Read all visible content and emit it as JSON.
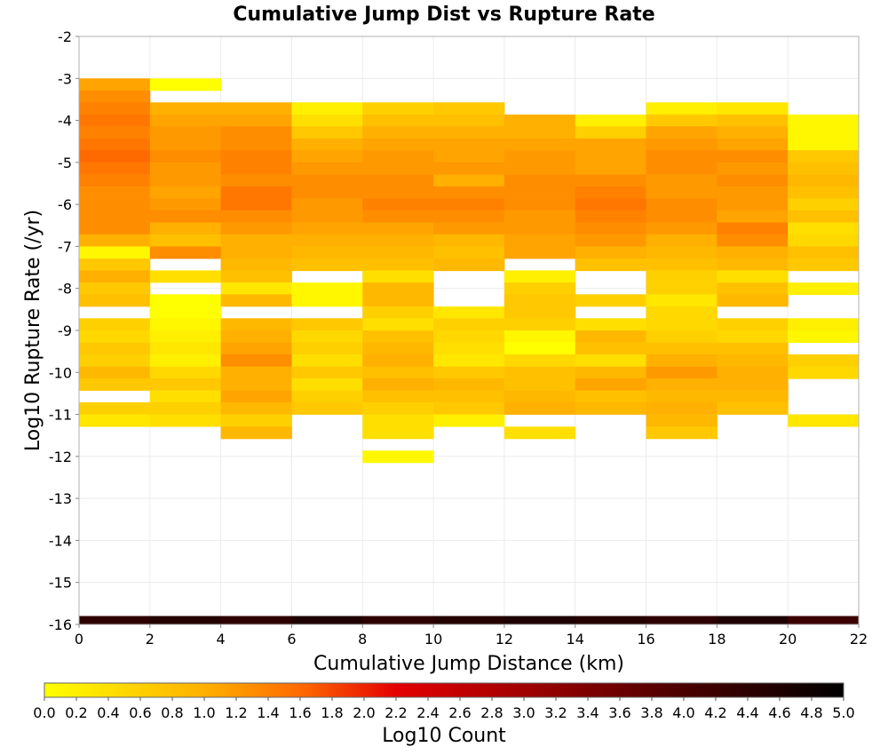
{
  "chart_data": {
    "type": "heatmap",
    "title": "Cumulative Jump Dist vs Rupture Rate",
    "xlabel": "Cumulative Jump Distance (km)",
    "ylabel": "Log10 Rupture Rate (/yr)",
    "xlim": [
      0,
      22
    ],
    "ylim": [
      -16,
      -2
    ],
    "xticks": [
      "0",
      "2",
      "4",
      "6",
      "8",
      "10",
      "12",
      "14",
      "16",
      "18",
      "20",
      "22"
    ],
    "yticks": [
      "-2",
      "-3",
      "-4",
      "-5",
      "-6",
      "-7",
      "-8",
      "-9",
      "-10",
      "-11",
      "-12",
      "-13",
      "-14",
      "-15",
      "-16"
    ],
    "grid": true,
    "x_bin_width_km": 2,
    "y_bin_height_log10": 0.2857,
    "colorscale": {
      "label": "Log10 Count",
      "min": 0.0,
      "max": 5.0,
      "ticks": [
        "0.0",
        "0.2",
        "0.4",
        "0.6",
        "0.8",
        "1.0",
        "1.2",
        "1.4",
        "1.6",
        "1.8",
        "2.0",
        "2.2",
        "2.4",
        "2.6",
        "2.8",
        "3.0",
        "3.2",
        "3.4",
        "3.6",
        "3.8",
        "4.0",
        "4.2",
        "4.4",
        "4.6",
        "4.8",
        "5.0"
      ],
      "stops": [
        {
          "value": 0.0,
          "color": "#ffff00"
        },
        {
          "value": 1.0,
          "color": "#ffb000"
        },
        {
          "value": 1.6,
          "color": "#ff6a00"
        },
        {
          "value": 2.2,
          "color": "#e40000"
        },
        {
          "value": 3.0,
          "color": "#a00000"
        },
        {
          "value": 4.0,
          "color": "#4a0000"
        },
        {
          "value": 5.0,
          "color": "#000000"
        }
      ]
    },
    "columns": [
      {
        "x": 0,
        "cells": [
          [
            -3.0,
            1.1
          ],
          [
            -3.29,
            1.3
          ],
          [
            -3.57,
            1.4
          ],
          [
            -3.86,
            1.5
          ],
          [
            -4.14,
            1.4
          ],
          [
            -4.43,
            1.5
          ],
          [
            -4.71,
            1.6
          ],
          [
            -5.0,
            1.5
          ],
          [
            -5.29,
            1.4
          ],
          [
            -5.57,
            1.3
          ],
          [
            -5.86,
            1.3
          ],
          [
            -6.14,
            1.3
          ],
          [
            -6.43,
            1.3
          ],
          [
            -6.71,
            1.0
          ],
          [
            -7.0,
            0.1
          ],
          [
            -7.29,
            0.7
          ],
          [
            -7.57,
            1.0
          ],
          [
            -7.86,
            0.7
          ],
          [
            -8.14,
            0.8
          ],
          [
            -8.71,
            0.6
          ],
          [
            -9.0,
            0.5
          ],
          [
            -9.29,
            0.7
          ],
          [
            -9.57,
            0.6
          ],
          [
            -9.86,
            0.9
          ],
          [
            -10.14,
            0.7
          ],
          [
            -10.71,
            0.6
          ],
          [
            -11.0,
            0.3
          ]
        ]
      },
      {
        "x": 2,
        "cells": [
          [
            -3.0,
            0.0
          ],
          [
            -3.57,
            1.0
          ],
          [
            -3.86,
            1.1
          ],
          [
            -4.14,
            1.2
          ],
          [
            -4.43,
            1.2
          ],
          [
            -4.71,
            1.3
          ],
          [
            -5.0,
            1.2
          ],
          [
            -5.29,
            1.2
          ],
          [
            -5.57,
            1.1
          ],
          [
            -5.86,
            1.2
          ],
          [
            -6.14,
            1.3
          ],
          [
            -6.43,
            1.0
          ],
          [
            -6.71,
            0.8
          ],
          [
            -7.0,
            1.3
          ],
          [
            -7.57,
            0.4
          ],
          [
            -8.14,
            0.0
          ],
          [
            -8.43,
            0.0
          ],
          [
            -8.71,
            0.1
          ],
          [
            -9.0,
            0.2
          ],
          [
            -9.29,
            0.3
          ],
          [
            -9.57,
            0.2
          ],
          [
            -9.86,
            0.5
          ],
          [
            -10.14,
            0.7
          ],
          [
            -10.43,
            0.4
          ],
          [
            -10.71,
            0.6
          ],
          [
            -11.0,
            0.4
          ]
        ]
      },
      {
        "x": 4,
        "cells": [
          [
            -3.57,
            1.0
          ],
          [
            -3.86,
            1.1
          ],
          [
            -4.14,
            1.3
          ],
          [
            -4.43,
            1.3
          ],
          [
            -4.71,
            1.4
          ],
          [
            -5.0,
            1.4
          ],
          [
            -5.29,
            1.3
          ],
          [
            -5.57,
            1.5
          ],
          [
            -5.86,
            1.5
          ],
          [
            -6.14,
            1.3
          ],
          [
            -6.43,
            1.2
          ],
          [
            -6.71,
            1.0
          ],
          [
            -7.0,
            1.0
          ],
          [
            -7.29,
            0.9
          ],
          [
            -7.57,
            0.8
          ],
          [
            -7.86,
            0.3
          ],
          [
            -8.14,
            0.9
          ],
          [
            -8.71,
            0.9
          ],
          [
            -9.0,
            1.0
          ],
          [
            -9.29,
            1.1
          ],
          [
            -9.57,
            1.3
          ],
          [
            -9.86,
            1.0
          ],
          [
            -10.14,
            1.0
          ],
          [
            -10.43,
            1.1
          ],
          [
            -10.71,
            0.9
          ],
          [
            -11.0,
            0.6
          ],
          [
            -11.29,
            0.9
          ]
        ]
      },
      {
        "x": 6,
        "cells": [
          [
            -3.57,
            0.2
          ],
          [
            -3.86,
            0.4
          ],
          [
            -4.14,
            0.7
          ],
          [
            -4.43,
            1.0
          ],
          [
            -4.71,
            1.1
          ],
          [
            -5.0,
            1.2
          ],
          [
            -5.29,
            1.3
          ],
          [
            -5.57,
            1.3
          ],
          [
            -5.86,
            1.2
          ],
          [
            -6.14,
            1.2
          ],
          [
            -6.43,
            1.1
          ],
          [
            -6.71,
            1.0
          ],
          [
            -7.0,
            0.9
          ],
          [
            -7.29,
            0.8
          ],
          [
            -7.86,
            0.1
          ],
          [
            -8.14,
            0.1
          ],
          [
            -8.71,
            0.7
          ],
          [
            -9.0,
            0.5
          ],
          [
            -9.29,
            0.6
          ],
          [
            -9.57,
            0.4
          ],
          [
            -9.86,
            0.7
          ],
          [
            -10.14,
            0.4
          ],
          [
            -10.43,
            0.6
          ],
          [
            -10.71,
            0.7
          ]
        ]
      },
      {
        "x": 8,
        "cells": [
          [
            -3.57,
            0.6
          ],
          [
            -3.86,
            0.8
          ],
          [
            -4.14,
            1.0
          ],
          [
            -4.43,
            1.1
          ],
          [
            -4.71,
            1.2
          ],
          [
            -5.0,
            1.2
          ],
          [
            -5.29,
            1.3
          ],
          [
            -5.57,
            1.3
          ],
          [
            -5.86,
            1.4
          ],
          [
            -6.14,
            1.3
          ],
          [
            -6.43,
            1.1
          ],
          [
            -6.71,
            1.0
          ],
          [
            -7.0,
            0.9
          ],
          [
            -7.29,
            0.8
          ],
          [
            -7.57,
            0.4
          ],
          [
            -7.86,
            0.9
          ],
          [
            -8.14,
            0.9
          ],
          [
            -8.43,
            0.6
          ],
          [
            -8.71,
            0.4
          ],
          [
            -9.0,
            0.8
          ],
          [
            -9.29,
            0.9
          ],
          [
            -9.57,
            1.0
          ],
          [
            -9.86,
            0.8
          ],
          [
            -10.14,
            1.0
          ],
          [
            -10.43,
            0.8
          ],
          [
            -10.71,
            0.6
          ],
          [
            -11.0,
            0.4
          ],
          [
            -11.29,
            0.4
          ],
          [
            -11.86,
            0.1
          ]
        ]
      },
      {
        "x": 10,
        "cells": [
          [
            -3.57,
            0.7
          ],
          [
            -3.86,
            0.8
          ],
          [
            -4.14,
            1.0
          ],
          [
            -4.43,
            1.1
          ],
          [
            -4.71,
            1.1
          ],
          [
            -5.0,
            1.2
          ],
          [
            -5.29,
            1.0
          ],
          [
            -5.57,
            1.3
          ],
          [
            -5.86,
            1.4
          ],
          [
            -6.14,
            1.3
          ],
          [
            -6.43,
            1.2
          ],
          [
            -6.71,
            0.9
          ],
          [
            -7.0,
            0.8
          ],
          [
            -7.29,
            0.9
          ],
          [
            -8.43,
            0.3
          ],
          [
            -8.71,
            0.6
          ],
          [
            -9.0,
            0.5
          ],
          [
            -9.29,
            0.4
          ],
          [
            -9.57,
            0.3
          ],
          [
            -9.86,
            0.7
          ],
          [
            -10.14,
            0.9
          ],
          [
            -10.43,
            0.8
          ],
          [
            -10.71,
            0.7
          ],
          [
            -11.0,
            0.2
          ]
        ]
      },
      {
        "x": 12,
        "cells": [
          [
            -3.86,
            1.0
          ],
          [
            -4.14,
            1.0
          ],
          [
            -4.43,
            1.1
          ],
          [
            -4.71,
            1.2
          ],
          [
            -5.0,
            1.2
          ],
          [
            -5.29,
            1.3
          ],
          [
            -5.57,
            1.3
          ],
          [
            -5.86,
            1.3
          ],
          [
            -6.14,
            1.2
          ],
          [
            -6.43,
            1.2
          ],
          [
            -6.71,
            1.1
          ],
          [
            -7.0,
            1.1
          ],
          [
            -7.57,
            0.2
          ],
          [
            -7.86,
            0.6
          ],
          [
            -8.14,
            0.7
          ],
          [
            -8.43,
            0.7
          ],
          [
            -8.71,
            0.6
          ],
          [
            -9.0,
            0.1
          ],
          [
            -9.29,
            0.0
          ],
          [
            -9.57,
            0.5
          ],
          [
            -9.86,
            0.8
          ],
          [
            -10.14,
            0.8
          ],
          [
            -10.43,
            0.9
          ],
          [
            -10.71,
            1.0
          ],
          [
            -11.29,
            0.4
          ]
        ]
      },
      {
        "x": 14,
        "cells": [
          [
            -3.86,
            0.2
          ],
          [
            -4.14,
            0.6
          ],
          [
            -4.43,
            1.1
          ],
          [
            -4.71,
            1.1
          ],
          [
            -5.0,
            1.1
          ],
          [
            -5.29,
            1.3
          ],
          [
            -5.57,
            1.4
          ],
          [
            -5.86,
            1.5
          ],
          [
            -6.14,
            1.4
          ],
          [
            -6.43,
            1.3
          ],
          [
            -6.71,
            1.2
          ],
          [
            -7.0,
            1.0
          ],
          [
            -7.29,
            0.8
          ],
          [
            -8.14,
            0.6
          ],
          [
            -8.71,
            0.4
          ],
          [
            -9.0,
            0.9
          ],
          [
            -9.29,
            0.8
          ],
          [
            -9.57,
            0.4
          ],
          [
            -9.86,
            0.9
          ],
          [
            -10.14,
            1.1
          ],
          [
            -10.43,
            0.8
          ],
          [
            -10.71,
            0.9
          ]
        ]
      },
      {
        "x": 16,
        "cells": [
          [
            -3.57,
            0.2
          ],
          [
            -3.86,
            0.7
          ],
          [
            -4.14,
            1.1
          ],
          [
            -4.43,
            1.2
          ],
          [
            -4.71,
            1.3
          ],
          [
            -5.0,
            1.3
          ],
          [
            -5.29,
            1.2
          ],
          [
            -5.57,
            1.2
          ],
          [
            -5.86,
            1.3
          ],
          [
            -6.14,
            1.3
          ],
          [
            -6.43,
            1.2
          ],
          [
            -6.71,
            1.0
          ],
          [
            -7.0,
            0.9
          ],
          [
            -7.29,
            0.8
          ],
          [
            -7.57,
            0.6
          ],
          [
            -7.86,
            0.6
          ],
          [
            -8.14,
            0.3
          ],
          [
            -8.43,
            0.5
          ],
          [
            -8.71,
            0.5
          ],
          [
            -9.0,
            0.6
          ],
          [
            -9.29,
            0.8
          ],
          [
            -9.57,
            1.0
          ],
          [
            -9.86,
            1.2
          ],
          [
            -10.14,
            1.0
          ],
          [
            -10.43,
            0.9
          ],
          [
            -10.71,
            1.0
          ],
          [
            -11.0,
            0.9
          ],
          [
            -11.29,
            0.7
          ]
        ]
      },
      {
        "x": 18,
        "cells": [
          [
            -3.57,
            0.3
          ],
          [
            -3.86,
            0.8
          ],
          [
            -4.14,
            1.0
          ],
          [
            -4.43,
            1.1
          ],
          [
            -4.71,
            1.3
          ],
          [
            -5.0,
            1.2
          ],
          [
            -5.29,
            1.3
          ],
          [
            -5.57,
            1.2
          ],
          [
            -5.86,
            1.2
          ],
          [
            -6.14,
            1.1
          ],
          [
            -6.43,
            1.4
          ],
          [
            -6.71,
            1.3
          ],
          [
            -7.0,
            1.0
          ],
          [
            -7.29,
            0.9
          ],
          [
            -7.57,
            0.4
          ],
          [
            -7.86,
            0.8
          ],
          [
            -8.14,
            0.9
          ],
          [
            -8.71,
            0.6
          ],
          [
            -9.0,
            0.5
          ],
          [
            -9.29,
            0.8
          ],
          [
            -9.57,
            0.9
          ],
          [
            -9.86,
            1.0
          ],
          [
            -10.14,
            1.0
          ],
          [
            -10.43,
            0.9
          ],
          [
            -10.71,
            0.8
          ]
        ]
      },
      {
        "x": 20,
        "cells": [
          [
            -3.86,
            0.1
          ],
          [
            -4.14,
            0.1
          ],
          [
            -4.43,
            0.1
          ],
          [
            -4.71,
            0.7
          ],
          [
            -5.0,
            0.8
          ],
          [
            -5.29,
            0.9
          ],
          [
            -5.57,
            0.8
          ],
          [
            -5.86,
            0.6
          ],
          [
            -6.14,
            0.8
          ],
          [
            -6.43,
            0.4
          ],
          [
            -6.71,
            0.5
          ],
          [
            -7.0,
            0.8
          ],
          [
            -7.29,
            0.7
          ],
          [
            -7.86,
            0.2
          ],
          [
            -8.71,
            0.2
          ],
          [
            -9.0,
            0.1
          ],
          [
            -9.57,
            0.6
          ],
          [
            -9.86,
            0.5
          ],
          [
            -11.0,
            0.3
          ]
        ]
      }
    ],
    "bottom_band": {
      "y": -16,
      "height_log10": 0.2,
      "values": [
        4.4,
        4.5,
        4.4,
        4.6,
        4.4,
        4.5,
        4.6,
        4.5,
        4.4,
        4.6,
        4.2
      ]
    }
  }
}
